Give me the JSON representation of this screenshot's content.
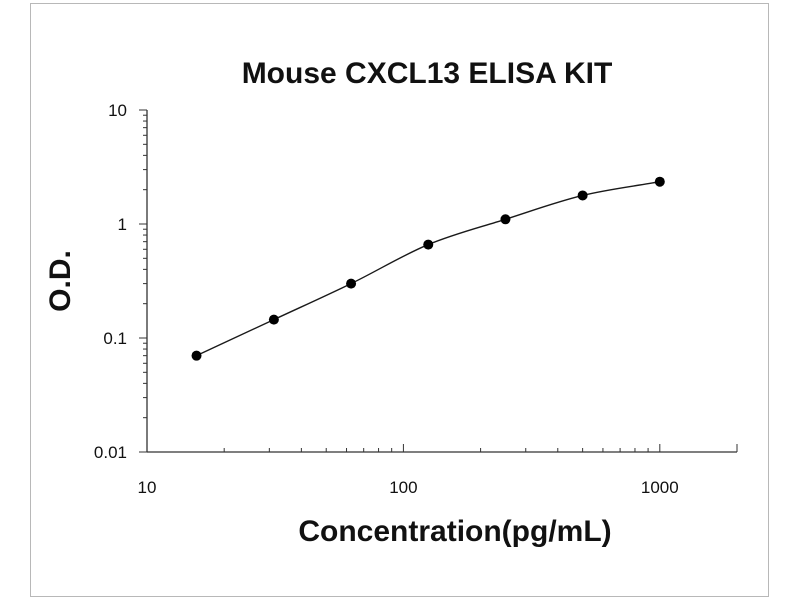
{
  "chart_data": {
    "type": "scatter",
    "title": "Mouse CXCL13 ELISA KIT",
    "xlabel": "Concentration(pg/mL)",
    "ylabel": "O.D.",
    "xscale": "log",
    "yscale": "log",
    "xlim": [
      10,
      2000
    ],
    "ylim": [
      0.01,
      10
    ],
    "x_tick_labels": [
      "10",
      "100",
      "1000"
    ],
    "y_tick_labels": [
      "10",
      "1",
      "0.1",
      "0.01"
    ],
    "fit_curve": true,
    "grid": false,
    "series": [
      {
        "x": [
          15.6,
          31.25,
          62.5,
          125,
          250,
          500,
          1000
        ],
        "y": [
          0.07,
          0.145,
          0.3,
          0.66,
          1.1,
          1.78,
          2.35
        ]
      }
    ]
  },
  "colors": {
    "marker": "#000000",
    "line": "#1a1a1a",
    "axis": "#333333"
  }
}
